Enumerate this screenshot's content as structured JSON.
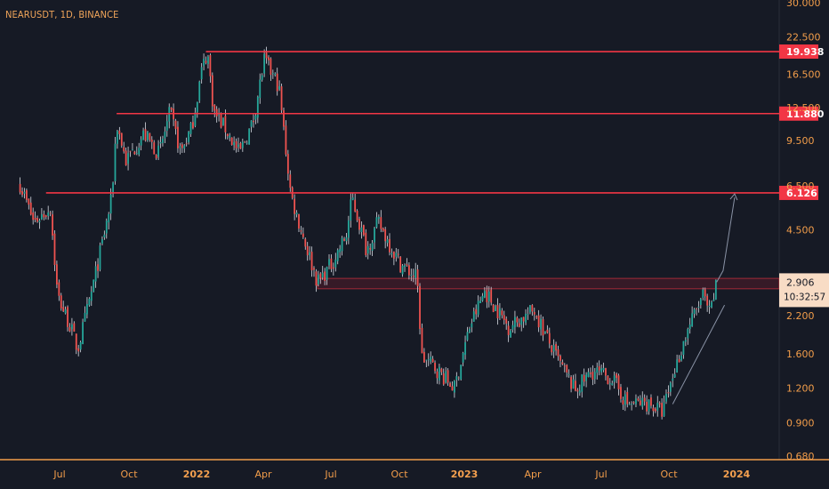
{
  "header": {
    "symbol_line": "NEARUSDT, 1D, BINANCE"
  },
  "colors": {
    "background": "#161a25",
    "up": "#26a69a",
    "down": "#ef5350",
    "wick": "#d7dbe3",
    "level_line": "#f23645",
    "axis_text": "#f29d4a",
    "axis_text_bold": "#f5a04f",
    "price_tag_bg": "#f8dcc5",
    "price_tag_text": "#151924",
    "arrow": "#8a93a6",
    "zone": "#8b1e2d"
  },
  "chart_data": {
    "type": "candlestick",
    "title": "NEARUSDT, 1D, BINANCE",
    "scale": "log",
    "y_ticks": [
      "30.000",
      "22.500",
      "16.500",
      "12.500",
      "9.500",
      "6.500",
      "4.500",
      "2.200",
      "1.600",
      "1.200",
      "0.900",
      "0.680"
    ],
    "x_ticks": [
      {
        "label": "Jul",
        "bold": false
      },
      {
        "label": "Oct",
        "bold": false
      },
      {
        "label": "2022",
        "bold": true
      },
      {
        "label": "Apr",
        "bold": false
      },
      {
        "label": "Jul",
        "bold": false
      },
      {
        "label": "Oct",
        "bold": false
      },
      {
        "label": "2023",
        "bold": true
      },
      {
        "label": "Apr",
        "bold": false
      },
      {
        "label": "Jul",
        "bold": false
      },
      {
        "label": "Oct",
        "bold": false
      },
      {
        "label": "2024",
        "bold": true
      }
    ],
    "levels": [
      {
        "label": "19.938",
        "value": 19.938
      },
      {
        "label": "11.880",
        "value": 11.88
      },
      {
        "label": "6.126",
        "value": 6.126
      }
    ],
    "last_price": {
      "value": "2.906",
      "countdown": "10:32:57"
    },
    "support_zone": {
      "low": 2.75,
      "high": 3.0
    },
    "path_points": [
      [
        "2021-05-01",
        6.6
      ],
      [
        "2021-05-20",
        4.8
      ],
      [
        "2021-06-12",
        5.4
      ],
      [
        "2021-06-22",
        2.6
      ],
      [
        "2021-07-10",
        2.0
      ],
      [
        "2021-07-20",
        1.65
      ],
      [
        "2021-08-10",
        2.8
      ],
      [
        "2021-09-05",
        5.8
      ],
      [
        "2021-09-12",
        11.0
      ],
      [
        "2021-09-25",
        8.0
      ],
      [
        "2021-10-20",
        10.0
      ],
      [
        "2021-11-10",
        8.5
      ],
      [
        "2021-11-25",
        12.0
      ],
      [
        "2021-12-10",
        8.6
      ],
      [
        "2021-12-25",
        10.5
      ],
      [
        "2022-01-08",
        17.0
      ],
      [
        "2022-01-16",
        20.0
      ],
      [
        "2022-01-25",
        12.0
      ],
      [
        "2022-02-10",
        10.5
      ],
      [
        "2022-03-01",
        8.5
      ],
      [
        "2022-03-20",
        11.0
      ],
      [
        "2022-04-05",
        18.5
      ],
      [
        "2022-04-25",
        15.0
      ],
      [
        "2022-05-12",
        6.0
      ],
      [
        "2022-05-25",
        4.6
      ],
      [
        "2022-06-18",
        2.9
      ],
      [
        "2022-07-08",
        3.4
      ],
      [
        "2022-07-28",
        4.3
      ],
      [
        "2022-08-05",
        5.9
      ],
      [
        "2022-08-25",
        3.8
      ],
      [
        "2022-09-10",
        4.8
      ],
      [
        "2022-10-10",
        3.4
      ],
      [
        "2022-11-03",
        3.0
      ],
      [
        "2022-11-10",
        1.55
      ],
      [
        "2022-11-25",
        1.45
      ],
      [
        "2022-12-25",
        1.2
      ],
      [
        "2023-01-15",
        2.0
      ],
      [
        "2023-02-05",
        2.7
      ],
      [
        "2023-03-10",
        2.0
      ],
      [
        "2023-04-15",
        2.3
      ],
      [
        "2023-05-10",
        1.65
      ],
      [
        "2023-06-10",
        1.18
      ],
      [
        "2023-07-05",
        1.38
      ],
      [
        "2023-08-01",
        1.3
      ],
      [
        "2023-08-22",
        1.05
      ],
      [
        "2023-09-20",
        1.06
      ],
      [
        "2023-10-10",
        0.98
      ],
      [
        "2023-10-25",
        1.35
      ],
      [
        "2023-11-15",
        2.0
      ],
      [
        "2023-12-05",
        2.6
      ],
      [
        "2023-12-15",
        2.2
      ],
      [
        "2023-12-24",
        2.906
      ]
    ],
    "projection_points": [
      [
        "2023-12-24",
        2.906
      ],
      [
        "2024-01-02",
        3.2
      ],
      [
        "2024-01-18",
        5.9
      ]
    ]
  }
}
